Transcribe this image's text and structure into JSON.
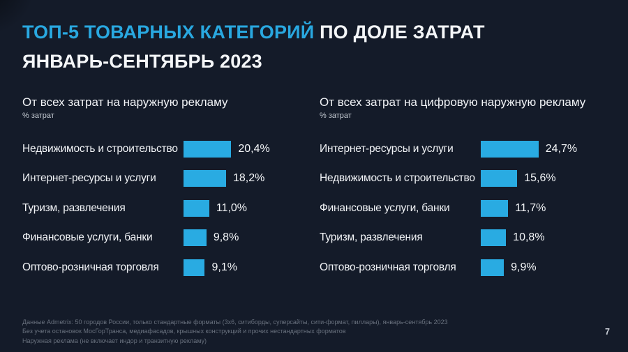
{
  "title": {
    "line1_highlight": "ТОП-5 ТОВАРНЫХ КАТЕГОРИЙ",
    "line1_rest": " ПО ДОЛЕ ЗАТРАТ",
    "line2": "ЯНВАРЬ-СЕНТЯБРЬ 2023"
  },
  "colors": {
    "background": "#141B29",
    "accent_blue": "#29A8E0",
    "bar_blue": "#29ABE2",
    "text_white": "#F4F6F8",
    "muted_gray": "#68707D"
  },
  "chart_data": [
    {
      "type": "bar",
      "orientation": "horizontal",
      "title": "От всех затрат на наружную рекламу",
      "unit_label": "% затрат",
      "categories": [
        "Недвижимость и строительство",
        "Интернет-ресурсы и услуги",
        "Туризм, развлечения",
        "Финансовые услуги, банки",
        "Оптово-розничная торговля"
      ],
      "values": [
        20.4,
        18.2,
        11.0,
        9.8,
        9.1
      ],
      "value_labels": [
        "20,4%",
        "18,2%",
        "11,0%",
        "9,8%",
        "9,1%"
      ],
      "xlim": [
        0,
        30
      ],
      "bar_color": "#29ABE2",
      "grid": false,
      "legend": false
    },
    {
      "type": "bar",
      "orientation": "horizontal",
      "title": "От всех затрат на цифровую наружную рекламу",
      "unit_label": "% затрат",
      "categories": [
        "Интернет-ресурсы и услуги",
        "Недвижимость и строительство",
        "Финансовые услуги, банки",
        "Туризм, развлечения",
        "Оптово-розничная торговля"
      ],
      "values": [
        24.7,
        15.6,
        11.7,
        10.8,
        9.9
      ],
      "value_labels": [
        "24,7%",
        "15,6%",
        "11,7%",
        "10,8%",
        "9,9%"
      ],
      "xlim": [
        0,
        30
      ],
      "bar_color": "#29ABE2",
      "grid": false,
      "legend": false
    }
  ],
  "footer": {
    "lines": [
      "Данные Admetrix: 50 городов России, только стандартные форматы (3х6, ситиборды, суперсайты, сити-формат, пиллары), январь-сентябрь 2023",
      "Без учета остановок МосГорТранса, медиафасадов, крышных конструкций и прочих нестандартных форматов",
      "Наружная реклама (не включает индор и транзитную рекламу)"
    ],
    "page_number": "7"
  }
}
